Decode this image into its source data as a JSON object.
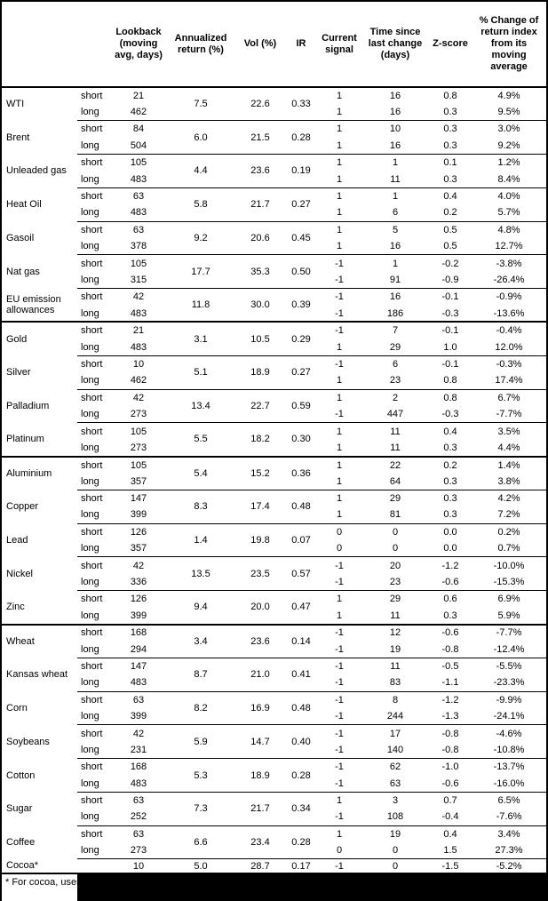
{
  "colors": {
    "text": "#000000",
    "background": "#ffffff",
    "border": "#000000",
    "redaction": "#000000"
  },
  "header": {
    "columns": [
      "",
      "",
      "Lookback (moving avg, days)",
      "Annualized return (%)",
      "Vol (%)",
      "IR",
      "Current signal",
      "Time since last change (days)",
      "Z-score",
      "% Change of return index from its moving average"
    ]
  },
  "table": {
    "sections": [
      {
        "name": "energy",
        "groups": [
          {
            "name": "WTI",
            "ann": "7.5",
            "vol": "22.6",
            "ir": "0.33",
            "rows": [
              {
                "label": "short",
                "lookback": "21",
                "signal": "1",
                "time": "16",
                "z": "0.8",
                "change": "4.9%"
              },
              {
                "label": "long",
                "lookback": "462",
                "signal": "1",
                "time": "16",
                "z": "0.3",
                "change": "9.5%"
              }
            ]
          },
          {
            "name": "Brent",
            "ann": "6.0",
            "vol": "21.5",
            "ir": "0.28",
            "rows": [
              {
                "label": "short",
                "lookback": "84",
                "signal": "1",
                "time": "10",
                "z": "0.3",
                "change": "3.0%"
              },
              {
                "label": "long",
                "lookback": "504",
                "signal": "1",
                "time": "16",
                "z": "0.3",
                "change": "9.2%"
              }
            ]
          },
          {
            "name": "Unleaded gas",
            "ann": "4.4",
            "vol": "23.6",
            "ir": "0.19",
            "rows": [
              {
                "label": "short",
                "lookback": "105",
                "signal": "1",
                "time": "1",
                "z": "0.1",
                "change": "1.2%"
              },
              {
                "label": "long",
                "lookback": "483",
                "signal": "1",
                "time": "11",
                "z": "0.3",
                "change": "8.4%"
              }
            ]
          },
          {
            "name": "Heat Oil",
            "ann": "5.8",
            "vol": "21.7",
            "ir": "0.27",
            "rows": [
              {
                "label": "short",
                "lookback": "63",
                "signal": "1",
                "time": "1",
                "z": "0.4",
                "change": "4.0%"
              },
              {
                "label": "long",
                "lookback": "483",
                "signal": "1",
                "time": "6",
                "z": "0.2",
                "change": "5.7%"
              }
            ]
          },
          {
            "name": "Gasoil",
            "ann": "9.2",
            "vol": "20.6",
            "ir": "0.45",
            "rows": [
              {
                "label": "short",
                "lookback": "63",
                "signal": "1",
                "time": "5",
                "z": "0.5",
                "change": "4.8%"
              },
              {
                "label": "long",
                "lookback": "378",
                "signal": "1",
                "time": "16",
                "z": "0.5",
                "change": "12.7%"
              }
            ]
          },
          {
            "name": "Nat gas",
            "ann": "17.7",
            "vol": "35.3",
            "ir": "0.50",
            "rows": [
              {
                "label": "short",
                "lookback": "105",
                "signal": "-1",
                "time": "1",
                "z": "-0.2",
                "change": "-3.8%"
              },
              {
                "label": "long",
                "lookback": "315",
                "signal": "-1",
                "time": "91",
                "z": "-0.9",
                "change": "-26.4%"
              }
            ]
          },
          {
            "name": "EU emission allowances",
            "ann": "11.8",
            "vol": "30.0",
            "ir": "0.39",
            "rows": [
              {
                "label": "short",
                "lookback": "42",
                "signal": "-1",
                "time": "16",
                "z": "-0.1",
                "change": "-0.9%"
              },
              {
                "label": "long",
                "lookback": "483",
                "signal": "-1",
                "time": "186",
                "z": "-0.3",
                "change": "-13.6%"
              }
            ]
          }
        ]
      },
      {
        "name": "precious-metals",
        "groups": [
          {
            "name": "Gold",
            "ann": "3.1",
            "vol": "10.5",
            "ir": "0.29",
            "rows": [
              {
                "label": "short",
                "lookback": "21",
                "signal": "-1",
                "time": "7",
                "z": "-0.1",
                "change": "-0.4%"
              },
              {
                "label": "long",
                "lookback": "483",
                "signal": "1",
                "time": "29",
                "z": "1.0",
                "change": "12.0%"
              }
            ]
          },
          {
            "name": "Silver",
            "ann": "5.1",
            "vol": "18.9",
            "ir": "0.27",
            "rows": [
              {
                "label": "short",
                "lookback": "10",
                "signal": "-1",
                "time": "6",
                "z": "-0.1",
                "change": "-0.3%"
              },
              {
                "label": "long",
                "lookback": "462",
                "signal": "1",
                "time": "23",
                "z": "0.8",
                "change": "17.4%"
              }
            ]
          },
          {
            "name": "Palladium",
            "ann": "13.4",
            "vol": "22.7",
            "ir": "0.59",
            "rows": [
              {
                "label": "short",
                "lookback": "42",
                "signal": "1",
                "time": "2",
                "z": "0.8",
                "change": "6.7%"
              },
              {
                "label": "long",
                "lookback": "273",
                "signal": "-1",
                "time": "447",
                "z": "-0.3",
                "change": "-7.7%"
              }
            ]
          },
          {
            "name": "Platinum",
            "ann": "5.5",
            "vol": "18.2",
            "ir": "0.30",
            "rows": [
              {
                "label": "short",
                "lookback": "105",
                "signal": "1",
                "time": "11",
                "z": "0.4",
                "change": "3.5%"
              },
              {
                "label": "long",
                "lookback": "273",
                "signal": "1",
                "time": "11",
                "z": "0.3",
                "change": "4.4%"
              }
            ]
          }
        ]
      },
      {
        "name": "base-metals",
        "groups": [
          {
            "name": "Aluminium",
            "ann": "5.4",
            "vol": "15.2",
            "ir": "0.36",
            "rows": [
              {
                "label": "short",
                "lookback": "105",
                "signal": "1",
                "time": "22",
                "z": "0.2",
                "change": "1.4%"
              },
              {
                "label": "long",
                "lookback": "357",
                "signal": "1",
                "time": "64",
                "z": "0.3",
                "change": "3.8%"
              }
            ]
          },
          {
            "name": "Copper",
            "ann": "8.3",
            "vol": "17.4",
            "ir": "0.48",
            "rows": [
              {
                "label": "short",
                "lookback": "147",
                "signal": "1",
                "time": "29",
                "z": "0.3",
                "change": "4.2%"
              },
              {
                "label": "long",
                "lookback": "399",
                "signal": "1",
                "time": "81",
                "z": "0.3",
                "change": "7.2%"
              }
            ]
          },
          {
            "name": "Lead",
            "ann": "1.4",
            "vol": "19.8",
            "ir": "0.07",
            "rows": [
              {
                "label": "short",
                "lookback": "126",
                "signal": "0",
                "time": "0",
                "z": "0.0",
                "change": "0.2%"
              },
              {
                "label": "long",
                "lookback": "357",
                "signal": "0",
                "time": "0",
                "z": "0.0",
                "change": "0.7%"
              }
            ]
          },
          {
            "name": "Nickel",
            "ann": "13.5",
            "vol": "23.5",
            "ir": "0.57",
            "rows": [
              {
                "label": "short",
                "lookback": "42",
                "signal": "-1",
                "time": "20",
                "z": "-1.2",
                "change": "-10.0%"
              },
              {
                "label": "long",
                "lookback": "336",
                "signal": "-1",
                "time": "23",
                "z": "-0.6",
                "change": "-15.3%"
              }
            ]
          },
          {
            "name": "Zinc",
            "ann": "9.4",
            "vol": "20.0",
            "ir": "0.47",
            "rows": [
              {
                "label": "short",
                "lookback": "126",
                "signal": "1",
                "time": "29",
                "z": "0.6",
                "change": "6.9%"
              },
              {
                "label": "long",
                "lookback": "399",
                "signal": "1",
                "time": "11",
                "z": "0.3",
                "change": "5.9%"
              }
            ]
          }
        ]
      },
      {
        "name": "agriculture",
        "groups": [
          {
            "name": "Wheat",
            "ann": "3.4",
            "vol": "23.6",
            "ir": "0.14",
            "rows": [
              {
                "label": "short",
                "lookback": "168",
                "signal": "-1",
                "time": "12",
                "z": "-0.6",
                "change": "-7.7%"
              },
              {
                "label": "long",
                "lookback": "294",
                "signal": "-1",
                "time": "19",
                "z": "-0.8",
                "change": "-12.4%"
              }
            ]
          },
          {
            "name": "Kansas wheat",
            "ann": "8.7",
            "vol": "21.0",
            "ir": "0.41",
            "rows": [
              {
                "label": "short",
                "lookback": "147",
                "signal": "-1",
                "time": "11",
                "z": "-0.5",
                "change": "-5.5%"
              },
              {
                "label": "long",
                "lookback": "483",
                "signal": "-1",
                "time": "83",
                "z": "-1.1",
                "change": "-23.3%"
              }
            ]
          },
          {
            "name": "Corn",
            "ann": "8.2",
            "vol": "16.9",
            "ir": "0.48",
            "rows": [
              {
                "label": "short",
                "lookback": "63",
                "signal": "-1",
                "time": "8",
                "z": "-1.2",
                "change": "-9.9%"
              },
              {
                "label": "long",
                "lookback": "399",
                "signal": "-1",
                "time": "244",
                "z": "-1.3",
                "change": "-24.1%"
              }
            ]
          },
          {
            "name": "Soybeans",
            "ann": "5.9",
            "vol": "14.7",
            "ir": "0.40",
            "rows": [
              {
                "label": "short",
                "lookback": "42",
                "signal": "-1",
                "time": "17",
                "z": "-0.8",
                "change": "-4.6%"
              },
              {
                "label": "long",
                "lookback": "231",
                "signal": "-1",
                "time": "140",
                "z": "-0.8",
                "change": "-10.8%"
              }
            ]
          },
          {
            "name": "Cotton",
            "ann": "5.3",
            "vol": "18.9",
            "ir": "0.28",
            "rows": [
              {
                "label": "short",
                "lookback": "168",
                "signal": "-1",
                "time": "62",
                "z": "-1.0",
                "change": "-13.7%"
              },
              {
                "label": "long",
                "lookback": "483",
                "signal": "-1",
                "time": "63",
                "z": "-0.6",
                "change": "-16.0%"
              }
            ]
          },
          {
            "name": "Sugar",
            "ann": "7.3",
            "vol": "21.7",
            "ir": "0.34",
            "rows": [
              {
                "label": "short",
                "lookback": "63",
                "signal": "1",
                "time": "3",
                "z": "0.7",
                "change": "6.5%"
              },
              {
                "label": "long",
                "lookback": "252",
                "signal": "-1",
                "time": "108",
                "z": "-0.4",
                "change": "-7.6%"
              }
            ]
          },
          {
            "name": "Coffee",
            "ann": "6.6",
            "vol": "23.4",
            "ir": "0.28",
            "rows": [
              {
                "label": "short",
                "lookback": "63",
                "signal": "1",
                "time": "19",
                "z": "0.4",
                "change": "3.4%"
              },
              {
                "label": "long",
                "lookback": "273",
                "signal": "0",
                "time": "0",
                "z": "1.5",
                "change": "27.3%"
              }
            ]
          },
          {
            "name": "Cocoa*",
            "ann": "5.0",
            "vol": "28.7",
            "ir": "0.17",
            "rows": [
              {
                "label": "",
                "lookback": "10",
                "signal": "-1",
                "time": "0",
                "z": "-1.5",
                "change": "-5.2%"
              }
            ]
          }
        ]
      }
    ]
  },
  "footer": {
    "text": "* For cocoa, uses o",
    "redacted": true
  }
}
